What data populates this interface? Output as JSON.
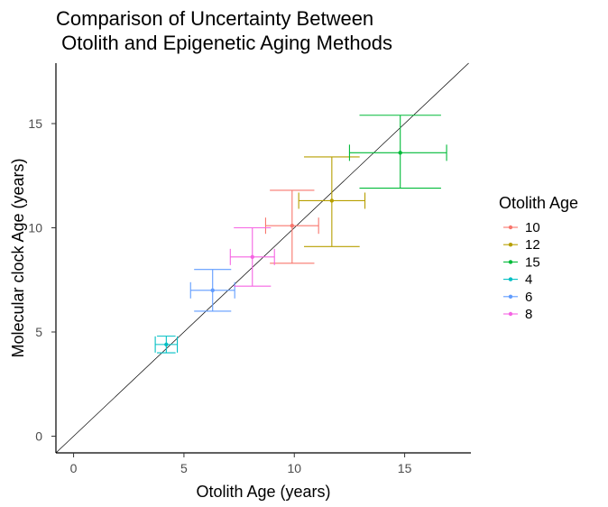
{
  "chart_data": {
    "type": "scatter",
    "title_lines": [
      "Comparison of Uncertainty Between",
      " Otolith and Epigenetic Aging Methods"
    ],
    "xlabel": "Otolith Age (years)",
    "ylabel": "Molecular clock Age (years)",
    "xlim": [
      -0.8,
      18
    ],
    "ylim": [
      -0.8,
      17.9
    ],
    "xticks": [
      0,
      5,
      10,
      15
    ],
    "yticks": [
      0,
      5,
      10,
      15
    ],
    "reference_line": {
      "slope": 1,
      "intercept": 0
    },
    "grid": false,
    "legend": {
      "title": "Otolith Age",
      "placement": "right",
      "entries": [
        "10",
        "12",
        "15",
        "4",
        "6",
        "8"
      ]
    },
    "series": [
      {
        "name": "10",
        "color": "#F8766D",
        "x": 9.9,
        "y": 10.1,
        "x_err": [
          8.7,
          11.1
        ],
        "y_err": [
          8.3,
          11.8
        ]
      },
      {
        "name": "12",
        "color": "#B79F00",
        "x": 11.7,
        "y": 11.3,
        "x_err": [
          10.2,
          13.2
        ],
        "y_err": [
          9.1,
          13.4
        ]
      },
      {
        "name": "15",
        "color": "#00BA38",
        "x": 14.8,
        "y": 13.6,
        "x_err": [
          12.5,
          16.9
        ],
        "y_err": [
          11.9,
          15.4
        ]
      },
      {
        "name": "4",
        "color": "#00BFC4",
        "x": 4.2,
        "y": 4.4,
        "x_err": [
          3.7,
          4.7
        ],
        "y_err": [
          4.0,
          4.8
        ]
      },
      {
        "name": "6",
        "color": "#619CFF",
        "x": 6.3,
        "y": 7.0,
        "x_err": [
          5.3,
          7.3
        ],
        "y_err": [
          6.0,
          8.0
        ]
      },
      {
        "name": "8",
        "color": "#F564E3",
        "x": 8.1,
        "y": 8.6,
        "x_err": [
          7.1,
          9.1
        ],
        "y_err": [
          7.2,
          10.0
        ]
      }
    ]
  }
}
